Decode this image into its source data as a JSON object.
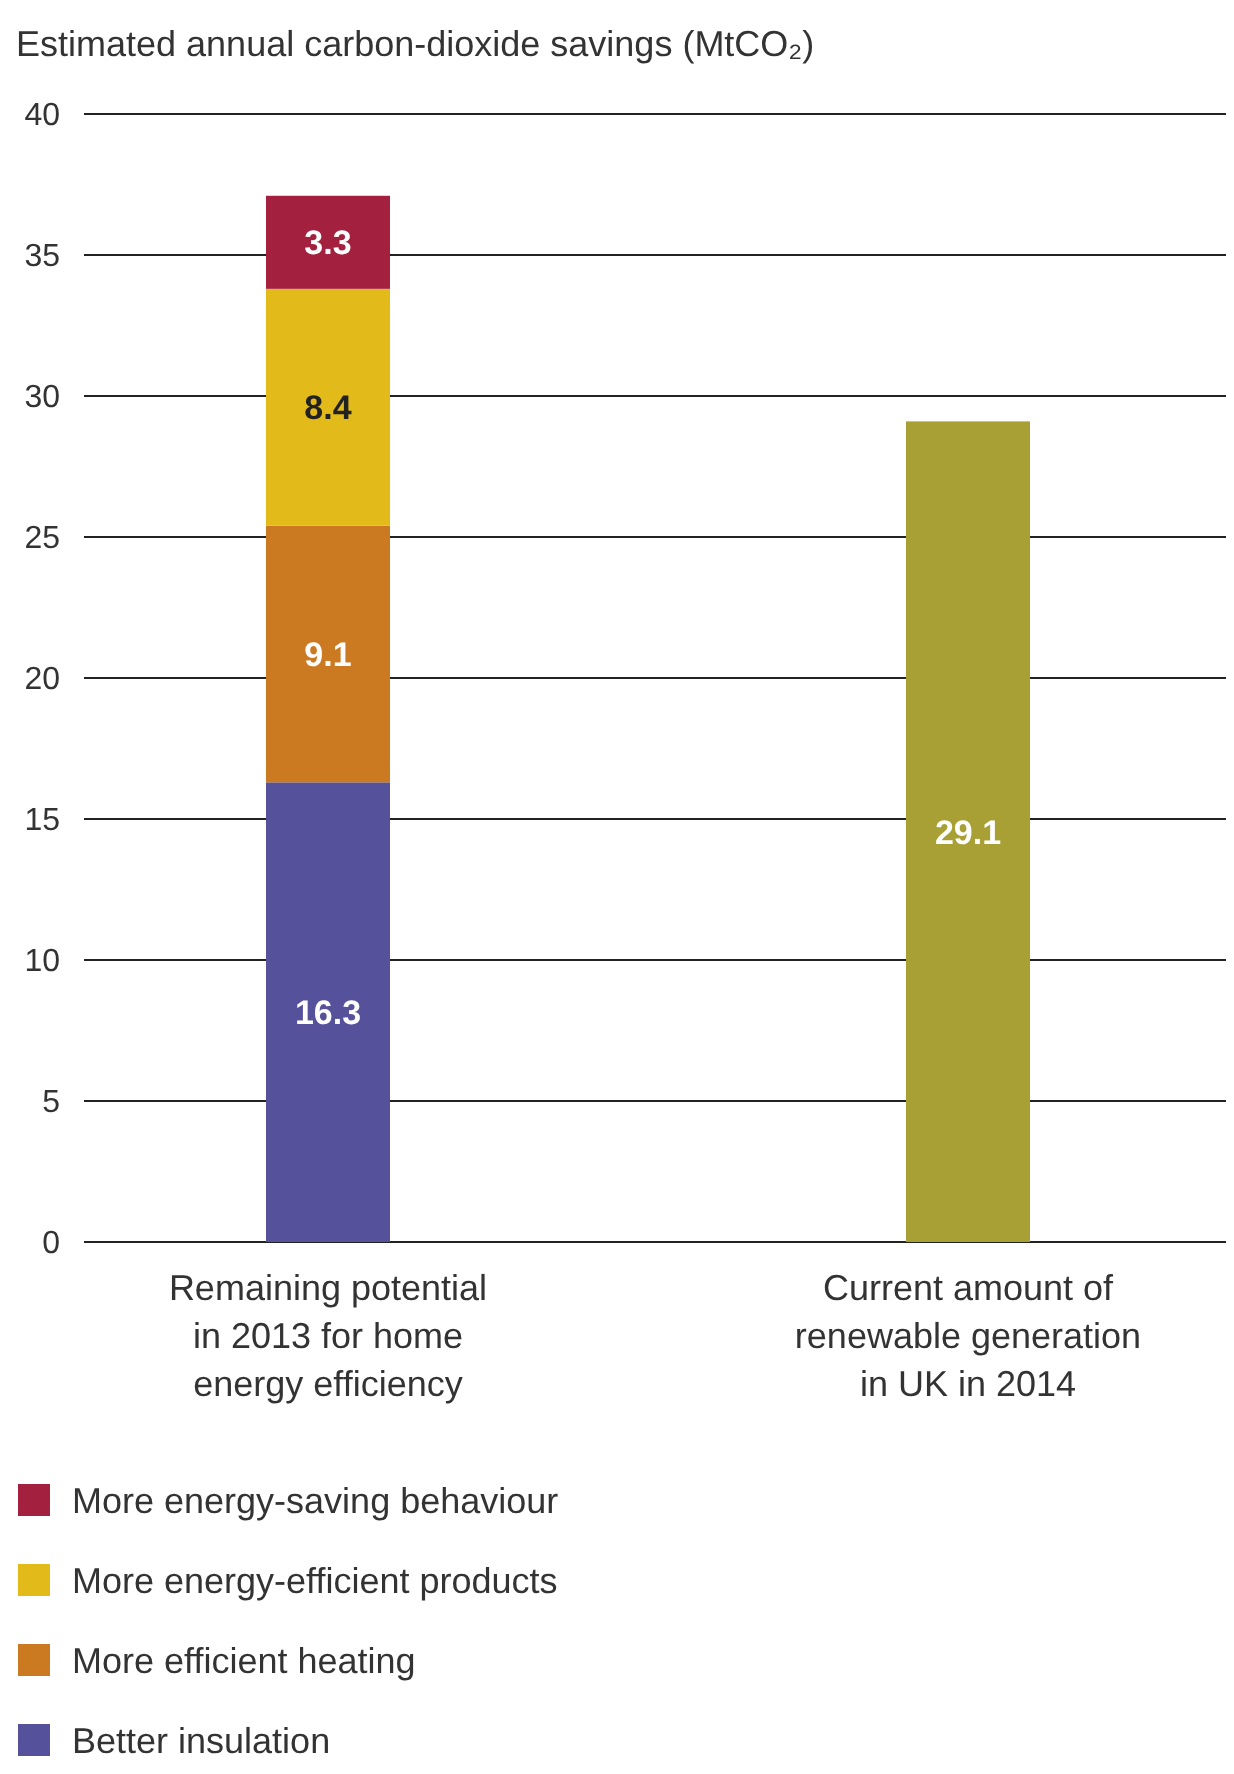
{
  "chart_data": {
    "type": "bar",
    "title": "Estimated annual carbon-dioxide savings (MtCO₂)",
    "categories": [
      "Remaining potential in 2013 for home energy efficiency",
      "Current amount of renewable generation in UK in 2014"
    ],
    "stacked": true,
    "series": [
      {
        "name": "Better insulation",
        "color": "#55519a",
        "values": [
          16.3,
          null
        ]
      },
      {
        "name": "More efficient heating",
        "color": "#cc7a22",
        "values": [
          9.1,
          null
        ]
      },
      {
        "name": "More energy-efficient products",
        "color": "#e2bb1a",
        "values": [
          8.4,
          null
        ]
      },
      {
        "name": "More energy-saving behaviour",
        "color": "#a3213f",
        "values": [
          3.3,
          null
        ]
      },
      {
        "color": "#a8a034",
        "values": [
          null,
          29.1
        ]
      }
    ],
    "ylim": [
      0,
      40
    ],
    "yticks": [
      0,
      5,
      10,
      15,
      20,
      25,
      30,
      35,
      40
    ],
    "grid": "y",
    "data_labels": true,
    "legend": "bottom"
  }
}
